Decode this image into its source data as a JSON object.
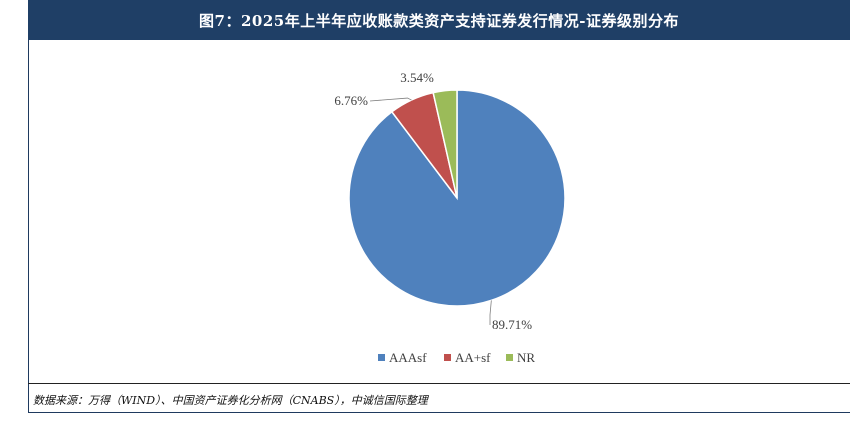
{
  "title": "图7：2025年上半年应收账款类资产支持证券发行情况-证券级别分布",
  "source": "数据来源：万得（WIND）、中国资产证券化分析网（CNABS），中诚信国际整理",
  "colors": {
    "header_bg": "#1f3f66",
    "AAAsf": "#4f81bd",
    "AA+sf": "#c0504d",
    "NR": "#9bbb59"
  },
  "chart_data": {
    "type": "pie",
    "title": "",
    "categories": [
      "AAAsf",
      "AA+sf",
      "NR"
    ],
    "values": [
      89.71,
      6.76,
      3.54
    ],
    "data_labels": [
      "89.71%",
      "6.76%",
      "3.54%"
    ],
    "colors": [
      "#4f81bd",
      "#c0504d",
      "#9bbb59"
    ],
    "legend": {
      "position": "bottom",
      "entries": [
        "AAAsf",
        "AA+sf",
        "NR"
      ]
    }
  }
}
